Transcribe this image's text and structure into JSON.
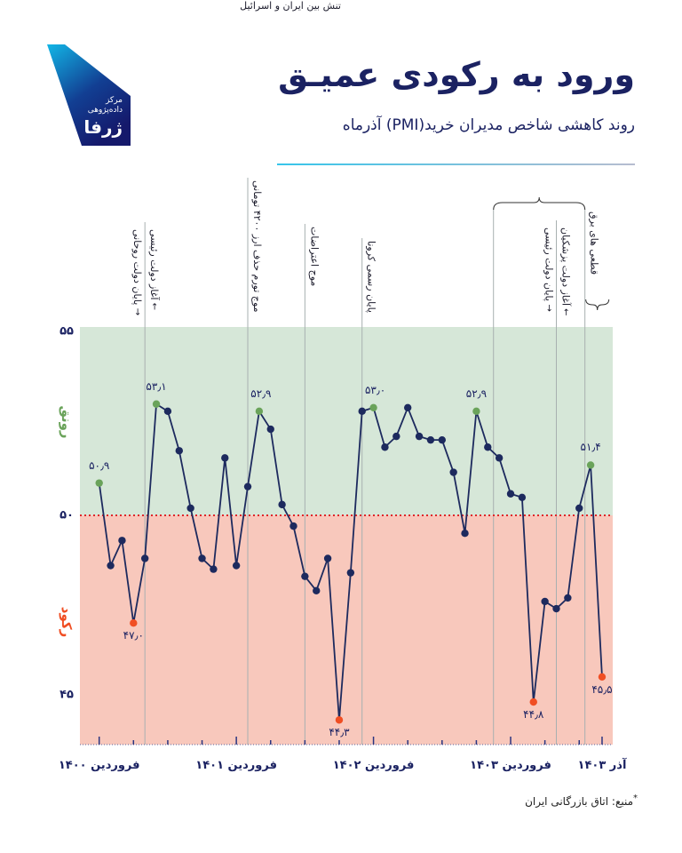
{
  "header": {
    "title": "ورود به رکودی عمیـق",
    "subtitle": "روند کاهشی شاخص مدیران خرید(PMI) آذرماه"
  },
  "logo": {
    "line1": "مرکز",
    "line2": "داده‌پژوهی",
    "name": "ژرفا"
  },
  "colors": {
    "navy": "#1d2a5e",
    "expansion_bg": "#d6e7d8",
    "contraction_bg": "#f8c8bc",
    "high": "#6aa35a",
    "low": "#f04e23",
    "threshold": "#e0262a"
  },
  "chart_data": {
    "type": "line",
    "title": "روند کاهشی شاخص مدیران خرید(PMI) آذرماه",
    "ylabel": "",
    "ylim": [
      43.6,
      55.25
    ],
    "yticks": [
      {
        "value": 55,
        "label": "۵۵"
      },
      {
        "value": 50,
        "label": "۵۰"
      },
      {
        "value": 45,
        "label": "۴۵"
      }
    ],
    "threshold": 50,
    "zones": {
      "expansion": "رونق",
      "contraction": "رکود"
    },
    "grid": false,
    "x_labels": [
      {
        "index": 0,
        "label": "فروردین ۱۴۰۰"
      },
      {
        "index": 12,
        "label": "فروردین ۱۴۰۱"
      },
      {
        "index": 24,
        "label": "فروردین ۱۴۰۲"
      },
      {
        "index": 36,
        "label": "فروردین ۱۴۰۳"
      },
      {
        "index": 44,
        "label": "آذر ۱۴۰۳"
      }
    ],
    "values": [
      50.9,
      48.6,
      49.3,
      47.0,
      48.8,
      53.1,
      52.9,
      51.8,
      50.2,
      48.8,
      48.5,
      51.6,
      48.6,
      50.8,
      52.9,
      52.4,
      50.3,
      49.7,
      48.3,
      47.9,
      48.8,
      44.3,
      48.4,
      52.9,
      53.0,
      51.9,
      52.2,
      53.0,
      52.2,
      52.1,
      52.1,
      51.2,
      49.5,
      52.9,
      51.9,
      51.6,
      50.6,
      50.5,
      44.8,
      47.6,
      47.4,
      47.7,
      50.2,
      51.4,
      45.5
    ],
    "data_labels": [
      {
        "index": 0,
        "label": "۵۰٫۹",
        "kind": "high"
      },
      {
        "index": 3,
        "label": "۴۷٫۰",
        "kind": "low"
      },
      {
        "index": 5,
        "label": "۵۳٫۱",
        "kind": "high"
      },
      {
        "index": 14,
        "label": "۵۲٫۹",
        "kind": "high"
      },
      {
        "index": 21,
        "label": "۴۴٫۳",
        "kind": "low"
      },
      {
        "index": 24,
        "label": "۵۳٫۰",
        "kind": "high"
      },
      {
        "index": 33,
        "label": "۵۲٫۹",
        "kind": "high"
      },
      {
        "index": 38,
        "label": "۴۴٫۸",
        "kind": "low"
      },
      {
        "index": 43,
        "label": "۵۱٫۴",
        "kind": "high"
      },
      {
        "index": 44,
        "label": "۴۵٫۵",
        "kind": "low"
      }
    ],
    "events": [
      {
        "index": 4,
        "left": "پایان دولت روحانی",
        "right": "آغاز دولت رئیسی"
      },
      {
        "index": 13,
        "right": "موج تورم حذف ارز ۴۲۰۰ تومانی"
      },
      {
        "index": 18,
        "right": "موج اعتراضات"
      },
      {
        "index": 23,
        "right": "پایان رسمی کرونا"
      },
      {
        "index": 34.5
      },
      {
        "index": 40,
        "left": "پایان دولت رئیسی",
        "right": "آغاز دولت پزشکیان"
      },
      {
        "index": 42.5,
        "right": "قطعی های برق"
      }
    ],
    "span_label": "تنش بین ایران و اسرائیل"
  },
  "footer": {
    "source": "منبع: اتاق بازرگانی ایران",
    "asterisk": "*"
  }
}
